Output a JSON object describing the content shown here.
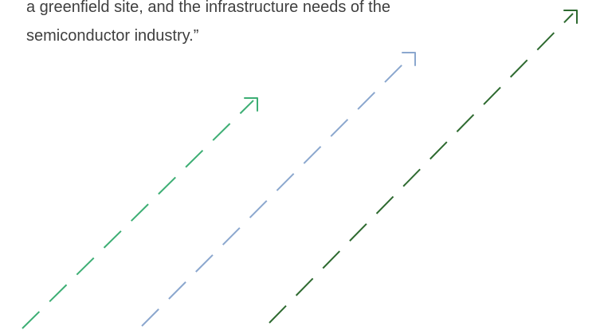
{
  "quote": {
    "lines": [
      "a greenfield site, and the infrastructure needs of the",
      "semiconductor industry.”"
    ]
  },
  "decorations": {
    "arrows": [
      {
        "name": "arrow-left",
        "color": "#3dae74"
      },
      {
        "name": "arrow-middle",
        "color": "#8ba7ce"
      },
      {
        "name": "arrow-right",
        "color": "#2e6a30"
      }
    ]
  }
}
